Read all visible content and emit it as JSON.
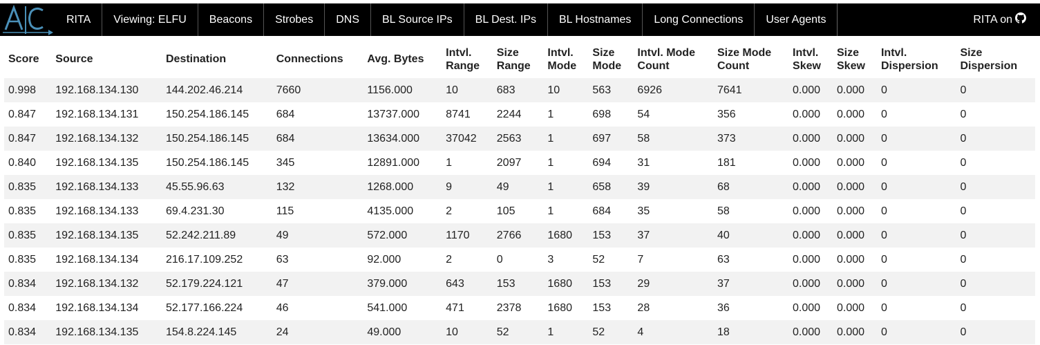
{
  "nav": {
    "items": [
      "RITA",
      "Viewing: ELFU",
      "Beacons",
      "Strobes",
      "DNS",
      "BL Source IPs",
      "BL Dest. IPs",
      "BL Hostnames",
      "Long Connections",
      "User Agents"
    ],
    "right_label": "RITA on",
    "right_icon": "github-icon",
    "logo_text": "AC"
  },
  "table": {
    "headers": [
      [
        "Score"
      ],
      [
        "Source"
      ],
      [
        "Destination"
      ],
      [
        "Connections"
      ],
      [
        "Avg. Bytes"
      ],
      [
        "Intvl.",
        "Range"
      ],
      [
        "Size",
        "Range"
      ],
      [
        "Intvl.",
        "Mode"
      ],
      [
        "Size",
        "Mode"
      ],
      [
        "Intvl. Mode",
        "Count"
      ],
      [
        "Size Mode",
        "Count"
      ],
      [
        "Intvl.",
        "Skew"
      ],
      [
        "Size",
        "Skew"
      ],
      [
        "Intvl.",
        "Dispersion"
      ],
      [
        "Size",
        "Dispersion"
      ]
    ],
    "rows": [
      [
        "0.998",
        "192.168.134.130",
        "144.202.46.214",
        "7660",
        "1156.000",
        "10",
        "683",
        "10",
        "563",
        "6926",
        "7641",
        "0.000",
        "0.000",
        "0",
        "0"
      ],
      [
        "0.847",
        "192.168.134.131",
        "150.254.186.145",
        "684",
        "13737.000",
        "8741",
        "2244",
        "1",
        "698",
        "54",
        "356",
        "0.000",
        "0.000",
        "0",
        "0"
      ],
      [
        "0.847",
        "192.168.134.132",
        "150.254.186.145",
        "684",
        "13634.000",
        "37042",
        "2563",
        "1",
        "697",
        "58",
        "373",
        "0.000",
        "0.000",
        "0",
        "0"
      ],
      [
        "0.840",
        "192.168.134.135",
        "150.254.186.145",
        "345",
        "12891.000",
        "1",
        "2097",
        "1",
        "694",
        "31",
        "181",
        "0.000",
        "0.000",
        "0",
        "0"
      ],
      [
        "0.835",
        "192.168.134.133",
        "45.55.96.63",
        "132",
        "1268.000",
        "9",
        "49",
        "1",
        "658",
        "39",
        "68",
        "0.000",
        "0.000",
        "0",
        "0"
      ],
      [
        "0.835",
        "192.168.134.133",
        "69.4.231.30",
        "115",
        "4135.000",
        "2",
        "105",
        "1",
        "684",
        "35",
        "58",
        "0.000",
        "0.000",
        "0",
        "0"
      ],
      [
        "0.835",
        "192.168.134.135",
        "52.242.211.89",
        "49",
        "572.000",
        "1170",
        "2766",
        "1680",
        "153",
        "37",
        "40",
        "0.000",
        "0.000",
        "0",
        "0"
      ],
      [
        "0.835",
        "192.168.134.134",
        "216.17.109.252",
        "63",
        "92.000",
        "2",
        "0",
        "3",
        "52",
        "7",
        "63",
        "0.000",
        "0.000",
        "0",
        "0"
      ],
      [
        "0.834",
        "192.168.134.132",
        "52.179.224.121",
        "47",
        "379.000",
        "643",
        "153",
        "1680",
        "153",
        "29",
        "37",
        "0.000",
        "0.000",
        "0",
        "0"
      ],
      [
        "0.834",
        "192.168.134.134",
        "52.177.166.224",
        "46",
        "541.000",
        "471",
        "2378",
        "1680",
        "153",
        "28",
        "36",
        "0.000",
        "0.000",
        "0",
        "0"
      ],
      [
        "0.834",
        "192.168.134.135",
        "154.8.224.145",
        "24",
        "49.000",
        "10",
        "52",
        "1",
        "52",
        "4",
        "18",
        "0.000",
        "0.000",
        "0",
        "0"
      ]
    ]
  },
  "colors": {
    "navbar_bg": "#000000",
    "logo_accent": "#4a90b8",
    "row_stripe": "#f2f2f2"
  }
}
